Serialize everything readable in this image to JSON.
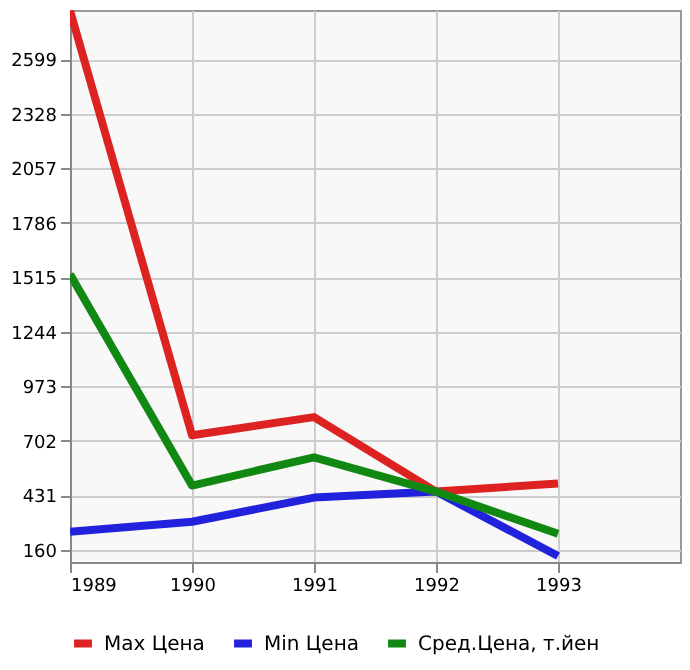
{
  "chart_data": {
    "type": "line",
    "x": [
      1989,
      1990,
      1991,
      1992,
      1993
    ],
    "series": [
      {
        "name": "Max Цена",
        "color": "#dd2222",
        "values": [
          2840,
          730,
          820,
          450,
          490
        ]
      },
      {
        "name": "Min Цена",
        "color": "#2222dd",
        "values": [
          250,
          300,
          420,
          450,
          130
        ]
      },
      {
        "name": "Сред.Цена, т.йен",
        "color": "#118811",
        "values": [
          1530,
          480,
          620,
          450,
          240
        ]
      }
    ],
    "xlim": [
      1989,
      1994
    ],
    "xticks": [
      1989,
      1990,
      1991,
      1992,
      1993
    ],
    "ylim": [
      100,
      2843
    ],
    "yticks": [
      160,
      431,
      702,
      973,
      1244,
      1515,
      1786,
      2057,
      2328,
      2599
    ],
    "grid": true,
    "legend": "bottom",
    "marker": "none",
    "line_style": "solid"
  }
}
